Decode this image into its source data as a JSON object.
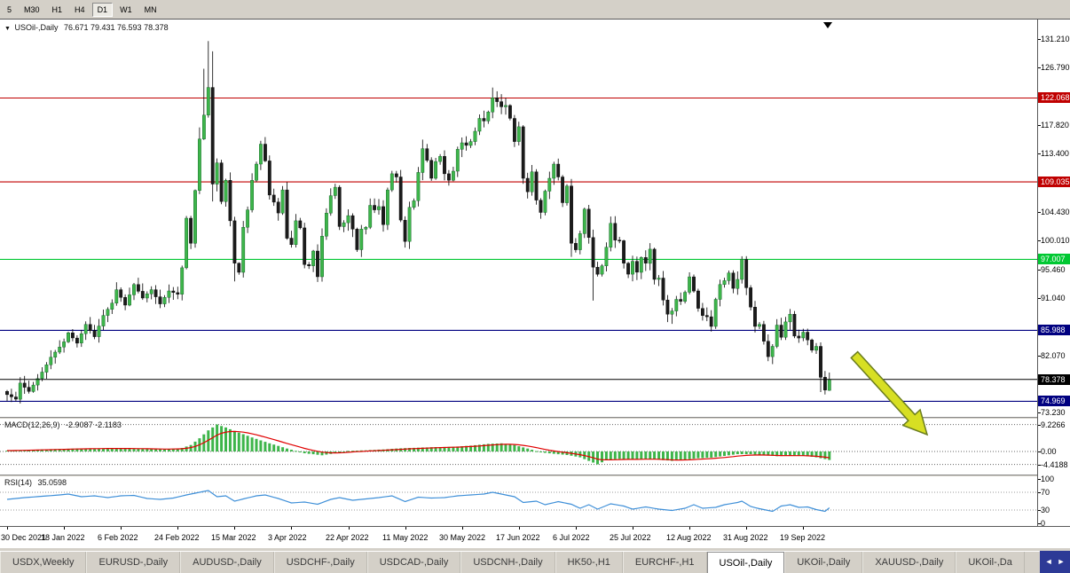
{
  "toolbar": {
    "timeframes": [
      {
        "label": "5",
        "active": false
      },
      {
        "label": "M30",
        "active": false
      },
      {
        "label": "H1",
        "active": false
      },
      {
        "label": "H4",
        "active": false
      },
      {
        "label": "D1",
        "active": true
      },
      {
        "label": "W1",
        "active": false
      },
      {
        "label": "MN",
        "active": false
      }
    ]
  },
  "chart": {
    "title": {
      "marker": "▼",
      "symbol": "USOil-,Daily",
      "ohlc": "76.671 79.431 76.593 78.378"
    }
  },
  "chart_data": {
    "type": "candlestick",
    "symbol": "USOil-",
    "period": "Daily",
    "current_bar": {
      "open": 76.671,
      "high": 79.431,
      "low": 76.593,
      "close": 78.378
    },
    "total_days": 189,
    "values_estimated": true,
    "price_axis": {
      "min": 72.55,
      "max": 134.25,
      "ticks": [
        {
          "v": 131.21,
          "label": "131.210"
        },
        {
          "v": 126.79,
          "label": "126.790"
        },
        {
          "v": 117.82,
          "label": "117.820"
        },
        {
          "v": 113.4,
          "label": "113.400"
        },
        {
          "v": 104.43,
          "label": "104.430"
        },
        {
          "v": 100.01,
          "label": "100.010"
        },
        {
          "v": 95.46,
          "label": "95.460"
        },
        {
          "v": 91.04,
          "label": "91.040"
        },
        {
          "v": 82.07,
          "label": "82.070"
        },
        {
          "v": 73.23,
          "label": "73.230"
        }
      ]
    },
    "levels": [
      {
        "value": 122.068,
        "label": "122.068",
        "color": "#c00000"
      },
      {
        "value": 109.035,
        "label": "109.035",
        "color": "#c00000"
      },
      {
        "value": 97.007,
        "label": "97.007",
        "color": "#00c832"
      },
      {
        "value": 85.988,
        "label": "85.988",
        "color": "#000080"
      },
      {
        "value": 78.378,
        "label": "78.378",
        "color": "#000000"
      },
      {
        "value": 74.969,
        "label": "74.969",
        "color": "#000080"
      }
    ],
    "candle_colors": {
      "up": "#3db54a",
      "down": "#1b1b1b",
      "wick": "#000000"
    },
    "close_anchors": [
      [
        0,
        76.0
      ],
      [
        2,
        75.3
      ],
      [
        3,
        77.8
      ],
      [
        5,
        76.5
      ],
      [
        8,
        79.5
      ],
      [
        10,
        81.8
      ],
      [
        13,
        84.2
      ],
      [
        14,
        85.6
      ],
      [
        16,
        84.0
      ],
      [
        18,
        86.9
      ],
      [
        20,
        85.0
      ],
      [
        22,
        88.3
      ],
      [
        24,
        90.2
      ],
      [
        25,
        92.3
      ],
      [
        27,
        89.9
      ],
      [
        29,
        93.1
      ],
      [
        31,
        91.0
      ],
      [
        33,
        92.3
      ],
      [
        35,
        90.1
      ],
      [
        37,
        92.1
      ],
      [
        39,
        91.6
      ],
      [
        40,
        95.7
      ],
      [
        41,
        103.4
      ],
      [
        42,
        99.5
      ],
      [
        43,
        107.7
      ],
      [
        44,
        115.7
      ],
      [
        45,
        119.4
      ],
      [
        46,
        123.7
      ],
      [
        47,
        108.7
      ],
      [
        48,
        112.0
      ],
      [
        49,
        106.0
      ],
      [
        50,
        109.3
      ],
      [
        51,
        103.0
      ],
      [
        52,
        96.4
      ],
      [
        53,
        95.0
      ],
      [
        54,
        102.0
      ],
      [
        55,
        104.7
      ],
      [
        56,
        109.3
      ],
      [
        57,
        111.8
      ],
      [
        58,
        114.9
      ],
      [
        59,
        112.3
      ],
      [
        60,
        107.0
      ],
      [
        61,
        105.9
      ],
      [
        62,
        104.2
      ],
      [
        63,
        107.8
      ],
      [
        64,
        100.3
      ],
      [
        65,
        99.3
      ],
      [
        66,
        103.0
      ],
      [
        67,
        101.9
      ],
      [
        68,
        96.2
      ],
      [
        69,
        96.0
      ],
      [
        70,
        98.3
      ],
      [
        71,
        94.3
      ],
      [
        72,
        100.6
      ],
      [
        73,
        104.2
      ],
      [
        74,
        106.9
      ],
      [
        75,
        108.2
      ],
      [
        76,
        102.1
      ],
      [
        77,
        102.7
      ],
      [
        78,
        103.8
      ],
      [
        79,
        101.7
      ],
      [
        80,
        98.5
      ],
      [
        81,
        101.7
      ],
      [
        82,
        102.0
      ],
      [
        83,
        105.4
      ],
      [
        84,
        104.7
      ],
      [
        85,
        105.2
      ],
      [
        86,
        102.4
      ],
      [
        87,
        107.8
      ],
      [
        88,
        110.3
      ],
      [
        89,
        109.8
      ],
      [
        90,
        103.1
      ],
      [
        91,
        99.8
      ],
      [
        92,
        105.1
      ],
      [
        93,
        106.1
      ],
      [
        94,
        110.5
      ],
      [
        95,
        114.2
      ],
      [
        96,
        112.4
      ],
      [
        97,
        109.6
      ],
      [
        98,
        112.2
      ],
      [
        99,
        113.0
      ],
      [
        100,
        110.3
      ],
      [
        101,
        109.3
      ],
      [
        102,
        110.7
      ],
      [
        103,
        114.1
      ],
      [
        104,
        115.1
      ],
      [
        105,
        114.7
      ],
      [
        106,
        115.3
      ],
      [
        107,
        116.9
      ],
      [
        108,
        118.9
      ],
      [
        109,
        118.5
      ],
      [
        110,
        119.9
      ],
      [
        111,
        122.1
      ],
      [
        112,
        121.5
      ],
      [
        113,
        120.7
      ],
      [
        114,
        120.9
      ],
      [
        115,
        118.9
      ],
      [
        116,
        115.3
      ],
      [
        117,
        117.6
      ],
      [
        118,
        109.6
      ],
      [
        119,
        107.5
      ],
      [
        120,
        110.6
      ],
      [
        121,
        106.2
      ],
      [
        122,
        104.3
      ],
      [
        123,
        107.6
      ],
      [
        124,
        109.6
      ],
      [
        125,
        111.8
      ],
      [
        126,
        109.8
      ],
      [
        127,
        105.8
      ],
      [
        128,
        108.4
      ],
      [
        129,
        99.5
      ],
      [
        130,
        98.5
      ],
      [
        131,
        101.0
      ],
      [
        132,
        104.8
      ],
      [
        133,
        100.4
      ],
      [
        134,
        95.8
      ],
      [
        135,
        94.7
      ],
      [
        136,
        96.0
      ],
      [
        137,
        98.9
      ],
      [
        138,
        102.6
      ],
      [
        139,
        100.0
      ],
      [
        140,
        99.9
      ],
      [
        141,
        96.4
      ],
      [
        142,
        94.7
      ],
      [
        143,
        96.7
      ],
      [
        144,
        95.0
      ],
      [
        145,
        97.3
      ],
      [
        146,
        96.4
      ],
      [
        147,
        98.6
      ],
      [
        148,
        93.9
      ],
      [
        149,
        94.1
      ],
      [
        150,
        90.7
      ],
      [
        151,
        88.5
      ],
      [
        152,
        89.0
      ],
      [
        153,
        90.8
      ],
      [
        154,
        90.5
      ],
      [
        155,
        91.9
      ],
      [
        156,
        94.3
      ],
      [
        157,
        92.1
      ],
      [
        158,
        89.4
      ],
      [
        159,
        88.3
      ],
      [
        160,
        88.1
      ],
      [
        161,
        86.6
      ],
      [
        162,
        90.8
      ],
      [
        163,
        93.1
      ],
      [
        164,
        93.7
      ],
      [
        165,
        94.9
      ],
      [
        166,
        92.5
      ],
      [
        167,
        93.9
      ],
      [
        168,
        97.0
      ],
      [
        169,
        92.6
      ],
      [
        170,
        89.6
      ],
      [
        171,
        86.6
      ],
      [
        172,
        86.9
      ],
      [
        173,
        84.3
      ],
      [
        174,
        81.9
      ],
      [
        175,
        83.5
      ],
      [
        176,
        86.8
      ],
      [
        177,
        84.9
      ],
      [
        178,
        87.3
      ],
      [
        179,
        88.5
      ],
      [
        180,
        85.1
      ],
      [
        181,
        84.8
      ],
      [
        182,
        85.7
      ],
      [
        183,
        84.5
      ],
      [
        184,
        82.9
      ],
      [
        185,
        83.5
      ],
      [
        186,
        78.7
      ],
      [
        187,
        76.7
      ],
      [
        188,
        78.378
      ]
    ],
    "wick_overrides": {
      "44": {
        "h": 117.5
      },
      "45": {
        "h": 126.6
      },
      "46": {
        "h": 130.9
      },
      "47": {
        "h": 129.3,
        "l": 106.0
      },
      "52": {
        "l": 93.6
      },
      "95": {
        "h": 115.6
      },
      "111": {
        "h": 123.68
      },
      "129": {
        "l": 97.4
      },
      "134": {
        "l": 90.6
      },
      "152": {
        "l": 87.0
      },
      "174": {
        "l": 81.2
      },
      "186": {
        "l": 76.4
      },
      "188": {
        "o": 76.671,
        "h": 79.431,
        "l": 76.593,
        "c": 78.378
      }
    },
    "x_labels": [
      {
        "day": 0,
        "label": "30 Dec 2021"
      },
      {
        "day": 13,
        "label": "18 Jan 2022"
      },
      {
        "day": 26,
        "label": "6 Feb 2022"
      },
      {
        "day": 39,
        "label": "24 Feb 2022"
      },
      {
        "day": 52,
        "label": "15 Mar 2022"
      },
      {
        "day": 65,
        "label": "3 Apr 2022"
      },
      {
        "day": 78,
        "label": "22 Apr 2022"
      },
      {
        "day": 91,
        "label": "11 May 2022"
      },
      {
        "day": 104,
        "label": "30 May 2022"
      },
      {
        "day": 117,
        "label": "17 Jun 2022"
      },
      {
        "day": 130,
        "label": "6 Jul 2022"
      },
      {
        "day": 143,
        "label": "25 Jul 2022"
      },
      {
        "day": 156,
        "label": "12 Aug 2022"
      },
      {
        "day": 169,
        "label": "31 Aug 2022"
      },
      {
        "day": 182,
        "label": "19 Sep 2022"
      }
    ],
    "macd": {
      "name": "MACD(12,26,9)",
      "values_text": "-2.9087 -2.1183",
      "main": -2.9087,
      "signal": -2.1183,
      "histogram_color": "#3db54a",
      "signal_color": "#e00000",
      "scale": [
        {
          "v": 9.2266,
          "label": "9.2266"
        },
        {
          "v": 0,
          "label": "0.00"
        },
        {
          "v": -4.4188,
          "label": "-4.4188"
        }
      ],
      "anchors": [
        [
          0,
          0.3
        ],
        [
          8,
          0.7
        ],
        [
          16,
          1.0
        ],
        [
          24,
          1.1
        ],
        [
          30,
          0.9
        ],
        [
          36,
          0.7
        ],
        [
          40,
          1.2
        ],
        [
          42,
          2.2
        ],
        [
          44,
          4.5
        ],
        [
          46,
          7.2
        ],
        [
          48,
          9.2
        ],
        [
          50,
          8.2
        ],
        [
          52,
          7.0
        ],
        [
          56,
          4.8
        ],
        [
          60,
          2.8
        ],
        [
          64,
          1.0
        ],
        [
          68,
          -0.6
        ],
        [
          72,
          -1.3
        ],
        [
          75,
          -0.6
        ],
        [
          78,
          0.2
        ],
        [
          82,
          0.4
        ],
        [
          86,
          0.7
        ],
        [
          90,
          1.1
        ],
        [
          94,
          1.3
        ],
        [
          98,
          1.5
        ],
        [
          102,
          1.6
        ],
        [
          106,
          2.0
        ],
        [
          110,
          2.6
        ],
        [
          113,
          2.8
        ],
        [
          116,
          2.2
        ],
        [
          119,
          1.0
        ],
        [
          122,
          -0.3
        ],
        [
          125,
          -0.8
        ],
        [
          128,
          -1.2
        ],
        [
          131,
          -2.0
        ],
        [
          133,
          -3.2
        ],
        [
          135,
          -4.4
        ],
        [
          137,
          -3.0
        ],
        [
          140,
          -2.5
        ],
        [
          143,
          -2.7
        ],
        [
          146,
          -2.5
        ],
        [
          149,
          -2.8
        ],
        [
          152,
          -3.2
        ],
        [
          155,
          -2.8
        ],
        [
          158,
          -2.3
        ],
        [
          161,
          -2.1
        ],
        [
          164,
          -1.5
        ],
        [
          167,
          -0.9
        ],
        [
          170,
          -0.9
        ],
        [
          173,
          -1.3
        ],
        [
          176,
          -1.6
        ],
        [
          179,
          -1.4
        ],
        [
          182,
          -1.5
        ],
        [
          185,
          -2.0
        ],
        [
          188,
          -2.9087
        ]
      ]
    },
    "rsi": {
      "name": "RSI(14)",
      "value_text": "35.0598",
      "value": 35.0598,
      "line_color": "#3e8fd8",
      "scale": [
        {
          "v": 100,
          "label": "100",
          "dashed": false
        },
        {
          "v": 70,
          "label": "70",
          "dashed": true
        },
        {
          "v": 30,
          "label": "30",
          "dashed": true
        },
        {
          "v": 0,
          "label": "0",
          "dashed": false
        }
      ],
      "anchors": [
        [
          0,
          54
        ],
        [
          4,
          58
        ],
        [
          8,
          61
        ],
        [
          12,
          64
        ],
        [
          14,
          66
        ],
        [
          17,
          60
        ],
        [
          20,
          62
        ],
        [
          23,
          58
        ],
        [
          26,
          62
        ],
        [
          29,
          63
        ],
        [
          32,
          56
        ],
        [
          35,
          54
        ],
        [
          38,
          57
        ],
        [
          41,
          64
        ],
        [
          44,
          70
        ],
        [
          46,
          74
        ],
        [
          48,
          60
        ],
        [
          50,
          62
        ],
        [
          52,
          50
        ],
        [
          54,
          55
        ],
        [
          57,
          62
        ],
        [
          59,
          64
        ],
        [
          62,
          56
        ],
        [
          65,
          46
        ],
        [
          68,
          48
        ],
        [
          71,
          43
        ],
        [
          74,
          54
        ],
        [
          76,
          58
        ],
        [
          79,
          52
        ],
        [
          82,
          55
        ],
        [
          85,
          58
        ],
        [
          88,
          62
        ],
        [
          91,
          49
        ],
        [
          94,
          59
        ],
        [
          97,
          57
        ],
        [
          100,
          58
        ],
        [
          103,
          62
        ],
        [
          106,
          64
        ],
        [
          109,
          66
        ],
        [
          111,
          70
        ],
        [
          114,
          64
        ],
        [
          116,
          60
        ],
        [
          118,
          47
        ],
        [
          121,
          50
        ],
        [
          123,
          42
        ],
        [
          126,
          49
        ],
        [
          129,
          43
        ],
        [
          131,
          34
        ],
        [
          133,
          42
        ],
        [
          135,
          32
        ],
        [
          138,
          44
        ],
        [
          141,
          39
        ],
        [
          143,
          32
        ],
        [
          146,
          37
        ],
        [
          149,
          32
        ],
        [
          152,
          29
        ],
        [
          155,
          34
        ],
        [
          157,
          42
        ],
        [
          159,
          34
        ],
        [
          162,
          36
        ],
        [
          164,
          42
        ],
        [
          167,
          47
        ],
        [
          168,
          50
        ],
        [
          170,
          38
        ],
        [
          172,
          33
        ],
        [
          175,
          27
        ],
        [
          177,
          39
        ],
        [
          179,
          42
        ],
        [
          181,
          36
        ],
        [
          183,
          37
        ],
        [
          185,
          31
        ],
        [
          187,
          27
        ],
        [
          188,
          35.06
        ]
      ]
    },
    "annotation_arrow": {
      "fill": "#d7df23",
      "stroke": "#6b7d1f"
    }
  },
  "tabs": {
    "scroll_left": "◄",
    "scroll_right": "►",
    "items": [
      {
        "label": "USDX,Weekly",
        "active": false
      },
      {
        "label": "EURUSD-,Daily",
        "active": false
      },
      {
        "label": "AUDUSD-,Daily",
        "active": false
      },
      {
        "label": "USDCHF-,Daily",
        "active": false
      },
      {
        "label": "USDCAD-,Daily",
        "active": false
      },
      {
        "label": "USDCNH-,Daily",
        "active": false
      },
      {
        "label": "HK50-,H1",
        "active": false
      },
      {
        "label": "EURCHF-,H1",
        "active": false
      },
      {
        "label": "USOil-,Daily",
        "active": true
      },
      {
        "label": "UKOil-,Daily",
        "active": false
      },
      {
        "label": "XAUUSD-,Daily",
        "active": false
      },
      {
        "label": "UKOil-,Da",
        "active": false
      }
    ]
  }
}
